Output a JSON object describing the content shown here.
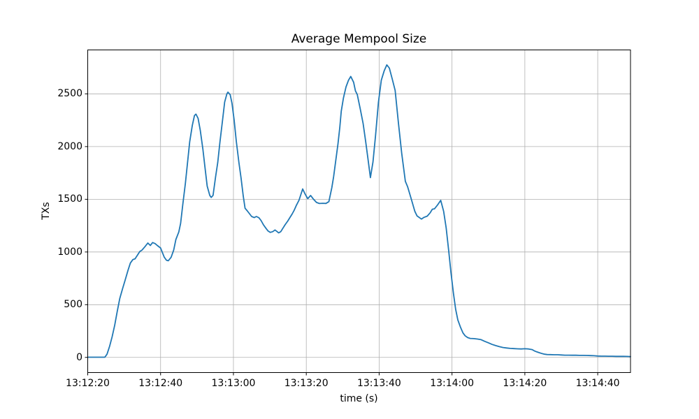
{
  "chart_data": {
    "type": "line",
    "title": "Average Mempool Size",
    "xlabel": "time (s)",
    "ylabel": "TXs",
    "grid": true,
    "legend": "none",
    "background_color": "#ffffff",
    "line_color": "#1f77b4",
    "grid_color": "#b0b0b0",
    "spine_color": "#000000",
    "x_unit": "seconds after 13:12:20",
    "xlim_seconds": [
      0,
      149
    ],
    "ylim": [
      -144,
      2917
    ],
    "x_ticks": [
      {
        "s": 0,
        "label": "13:12:20"
      },
      {
        "s": 20,
        "label": "13:12:40"
      },
      {
        "s": 40,
        "label": "13:13:00"
      },
      {
        "s": 60,
        "label": "13:13:20"
      },
      {
        "s": 80,
        "label": "13:13:40"
      },
      {
        "s": 100,
        "label": "13:14:00"
      },
      {
        "s": 120,
        "label": "13:14:20"
      },
      {
        "s": 140,
        "label": "13:14:40"
      }
    ],
    "y_ticks": [
      0,
      500,
      1000,
      1500,
      2000,
      2500
    ],
    "series": [
      {
        "name": "average mempool size",
        "points": [
          [
            0,
            2
          ],
          [
            1,
            2
          ],
          [
            2,
            2
          ],
          [
            3,
            2
          ],
          [
            4,
            2
          ],
          [
            4.7,
            2
          ],
          [
            5.3,
            30
          ],
          [
            6,
            105
          ],
          [
            6.7,
            195
          ],
          [
            7.4,
            305
          ],
          [
            8.1,
            435
          ],
          [
            8.8,
            560
          ],
          [
            9.6,
            655
          ],
          [
            10.2,
            725
          ],
          [
            11.1,
            830
          ],
          [
            11.7,
            895
          ],
          [
            12.4,
            928
          ],
          [
            13,
            935
          ],
          [
            13.6,
            968
          ],
          [
            14.3,
            1005
          ],
          [
            14.9,
            1018
          ],
          [
            15.7,
            1050
          ],
          [
            16.5,
            1085
          ],
          [
            17.2,
            1062
          ],
          [
            17.8,
            1090
          ],
          [
            18.5,
            1080
          ],
          [
            19.1,
            1062
          ],
          [
            20,
            1038
          ],
          [
            21,
            952
          ],
          [
            21.6,
            922
          ],
          [
            22.1,
            917
          ],
          [
            22.9,
            950
          ],
          [
            23.6,
            1018
          ],
          [
            24.2,
            1118
          ],
          [
            25,
            1190
          ],
          [
            25.5,
            1272
          ],
          [
            26.1,
            1450
          ],
          [
            26.8,
            1650
          ],
          [
            27.4,
            1848
          ],
          [
            28,
            2046
          ],
          [
            28.7,
            2200
          ],
          [
            29.3,
            2294
          ],
          [
            29.7,
            2308
          ],
          [
            30.3,
            2268
          ],
          [
            30.9,
            2155
          ],
          [
            31.6,
            1978
          ],
          [
            32.2,
            1800
          ],
          [
            32.8,
            1625
          ],
          [
            33.5,
            1537
          ],
          [
            33.9,
            1518
          ],
          [
            34.4,
            1537
          ],
          [
            35.1,
            1712
          ],
          [
            35.7,
            1848
          ],
          [
            36.3,
            2046
          ],
          [
            37,
            2246
          ],
          [
            37.6,
            2422
          ],
          [
            38.2,
            2500
          ],
          [
            38.5,
            2516
          ],
          [
            39.1,
            2492
          ],
          [
            39.6,
            2410
          ],
          [
            40.2,
            2250
          ],
          [
            40.8,
            2048
          ],
          [
            41.5,
            1848
          ],
          [
            42.1,
            1700
          ],
          [
            42.7,
            1530
          ],
          [
            43.2,
            1415
          ],
          [
            43.8,
            1390
          ],
          [
            44.4,
            1363
          ],
          [
            45,
            1337
          ],
          [
            45.7,
            1326
          ],
          [
            46.3,
            1337
          ],
          [
            47,
            1325
          ],
          [
            47.6,
            1297
          ],
          [
            48.2,
            1260
          ],
          [
            48.9,
            1226
          ],
          [
            49.5,
            1199
          ],
          [
            50.1,
            1186
          ],
          [
            50.8,
            1193
          ],
          [
            51.4,
            1209
          ],
          [
            52,
            1193
          ],
          [
            52.4,
            1181
          ],
          [
            53,
            1193
          ],
          [
            53.6,
            1226
          ],
          [
            54.2,
            1260
          ],
          [
            54.9,
            1293
          ],
          [
            55.5,
            1326
          ],
          [
            56.1,
            1360
          ],
          [
            56.7,
            1398
          ],
          [
            57.3,
            1444
          ],
          [
            58,
            1492
          ],
          [
            58.5,
            1545
          ],
          [
            59,
            1598
          ],
          [
            59.7,
            1548
          ],
          [
            60.4,
            1506
          ],
          [
            61.2,
            1536
          ],
          [
            62,
            1500
          ],
          [
            62.8,
            1470
          ],
          [
            63.6,
            1460
          ],
          [
            64.5,
            1462
          ],
          [
            65.4,
            1461
          ],
          [
            66.2,
            1478
          ],
          [
            67,
            1610
          ],
          [
            67.5,
            1715
          ],
          [
            68.1,
            1870
          ],
          [
            68.7,
            2025
          ],
          [
            69.2,
            2180
          ],
          [
            69.6,
            2335
          ],
          [
            70.2,
            2460
          ],
          [
            70.9,
            2566
          ],
          [
            71.6,
            2630
          ],
          [
            72.2,
            2665
          ],
          [
            73,
            2610
          ],
          [
            73.5,
            2528
          ],
          [
            74,
            2494
          ],
          [
            74.8,
            2360
          ],
          [
            75.6,
            2218
          ],
          [
            76.3,
            2050
          ],
          [
            76.9,
            1890
          ],
          [
            77.6,
            1706
          ],
          [
            78.3,
            1855
          ],
          [
            79,
            2100
          ],
          [
            79.8,
            2420
          ],
          [
            80.6,
            2630
          ],
          [
            81.4,
            2720
          ],
          [
            82.1,
            2775
          ],
          [
            82.8,
            2745
          ],
          [
            83.6,
            2640
          ],
          [
            84.4,
            2533
          ],
          [
            85.3,
            2224
          ],
          [
            86.2,
            1936
          ],
          [
            87.2,
            1671
          ],
          [
            87.8,
            1620
          ],
          [
            88.8,
            1504
          ],
          [
            89.8,
            1385
          ],
          [
            90.4,
            1343
          ],
          [
            91.6,
            1312
          ],
          [
            92.3,
            1328
          ],
          [
            93.2,
            1340
          ],
          [
            94,
            1372
          ],
          [
            94.6,
            1406
          ],
          [
            95.2,
            1410
          ],
          [
            96,
            1445
          ],
          [
            96.9,
            1490
          ],
          [
            97.7,
            1385
          ],
          [
            98.4,
            1228
          ],
          [
            99.1,
            1007
          ],
          [
            99.7,
            808
          ],
          [
            100.4,
            608
          ],
          [
            101,
            455
          ],
          [
            101.6,
            355
          ],
          [
            102.3,
            289
          ],
          [
            103,
            232
          ],
          [
            103.6,
            205
          ],
          [
            104.3,
            188
          ],
          [
            105,
            180
          ],
          [
            106,
            178
          ],
          [
            107,
            174
          ],
          [
            108,
            168
          ],
          [
            109,
            152
          ],
          [
            110,
            138
          ],
          [
            111,
            123
          ],
          [
            112,
            112
          ],
          [
            113,
            102
          ],
          [
            114,
            94
          ],
          [
            115,
            89
          ],
          [
            116,
            85
          ],
          [
            117,
            83
          ],
          [
            118,
            81
          ],
          [
            119,
            80
          ],
          [
            120,
            82
          ],
          [
            121,
            80
          ],
          [
            122,
            74
          ],
          [
            122.6,
            62
          ],
          [
            123.3,
            52
          ],
          [
            124,
            44
          ],
          [
            124.7,
            36
          ],
          [
            125.4,
            30
          ],
          [
            126.1,
            27
          ],
          [
            127,
            26
          ],
          [
            128,
            25
          ],
          [
            129,
            25
          ],
          [
            130,
            23
          ],
          [
            131,
            21
          ],
          [
            132,
            21
          ],
          [
            133,
            20
          ],
          [
            134,
            20
          ],
          [
            135,
            19
          ],
          [
            136,
            19
          ],
          [
            137,
            18
          ],
          [
            138,
            17
          ],
          [
            139,
            16
          ],
          [
            140,
            13
          ],
          [
            141,
            12
          ],
          [
            142,
            12
          ],
          [
            143,
            11
          ],
          [
            144,
            11
          ],
          [
            145,
            10
          ],
          [
            146,
            10
          ],
          [
            147,
            10
          ],
          [
            148,
            9
          ],
          [
            149,
            8
          ]
        ]
      }
    ]
  }
}
